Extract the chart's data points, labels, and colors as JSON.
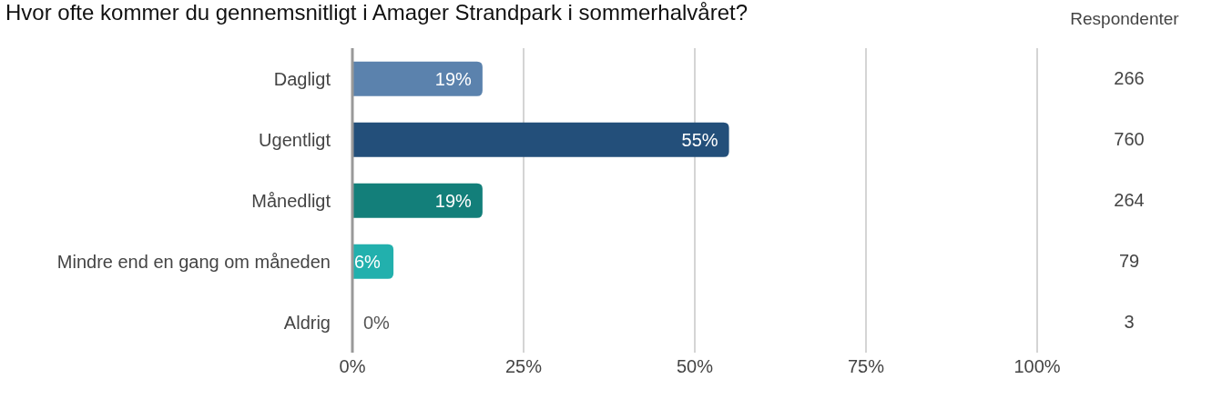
{
  "chart_data": {
    "type": "bar",
    "orientation": "horizontal",
    "title": "Hvor ofte kommer du gennemsnitligt i Amager Strandpark i sommerhalvåret?",
    "categories": [
      "Dagligt",
      "Ugentligt",
      "Månedligt",
      "Mindre end en gang om måneden",
      "Aldrig"
    ],
    "values": [
      19,
      55,
      19,
      6,
      0
    ],
    "colors": [
      "#5b82ad",
      "#234f7a",
      "#137f7a",
      "#22b0ad",
      "#22b0ad"
    ],
    "value_labels": [
      "19%",
      "55%",
      "19%",
      "6%",
      "0%"
    ],
    "xlim": [
      0,
      100
    ],
    "xticks": [
      {
        "value": 0,
        "label": "0%"
      },
      {
        "value": 25,
        "label": "25%"
      },
      {
        "value": 50,
        "label": "50%"
      },
      {
        "value": 75,
        "label": "75%"
      },
      {
        "value": 100,
        "label": "100%"
      }
    ],
    "grid": "x",
    "legend": false,
    "annotations": [
      "Respondenter",
      "266",
      "760",
      "264",
      "79",
      "3"
    ]
  }
}
